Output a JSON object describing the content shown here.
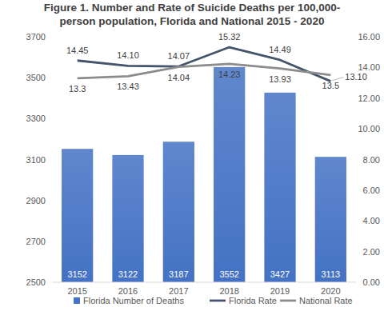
{
  "chart_data": {
    "type": "bar",
    "title": [
      "Figure 1. Number and Rate of Suicide Deaths per 100,000-",
      "person population, Florida and National 2015 - 2020"
    ],
    "categories": [
      "2015",
      "2016",
      "2017",
      "2018",
      "2019",
      "2020"
    ],
    "series": [
      {
        "name": "Florida Number of Deaths",
        "type": "bar",
        "color": "#4472c4",
        "values": [
          3152,
          3122,
          3187,
          3552,
          3427,
          3113
        ]
      },
      {
        "name": "Florida Rate",
        "type": "line",
        "axis": "y2",
        "color": "#44546a",
        "values": [
          14.45,
          14.1,
          14.07,
          15.32,
          14.49,
          13.1
        ],
        "value_labels": [
          "14.45",
          "14.10",
          "14.07",
          "15.32",
          "14.49",
          "13.10"
        ]
      },
      {
        "name": "National Rate",
        "type": "line",
        "axis": "y2",
        "color": "#8c8c8c",
        "values": [
          13.3,
          13.43,
          14.04,
          14.23,
          13.93,
          13.5
        ],
        "value_labels": [
          "13.3",
          "13.43",
          "14.04",
          "14.23",
          "13.93",
          "13.5"
        ]
      }
    ],
    "ylim": [
      2500,
      3700
    ],
    "yticks": [
      2500,
      2700,
      2900,
      3100,
      3300,
      3500,
      3700
    ],
    "y2lim": [
      0,
      16
    ],
    "y2ticks": [
      {
        "value": 0,
        "label": "0.00"
      },
      {
        "value": 2,
        "label": "2.00"
      },
      {
        "value": 4,
        "label": "4.00"
      },
      {
        "value": 6,
        "label": "6.00"
      },
      {
        "value": 8,
        "label": "8.00"
      },
      {
        "value": 10,
        "label": "10.00"
      },
      {
        "value": 12,
        "label": "12.00"
      },
      {
        "value": 14,
        "label": "14.00"
      },
      {
        "value": 16,
        "label": "16.00"
      }
    ],
    "grid": false,
    "legend": "bottom",
    "data_labels": true
  }
}
